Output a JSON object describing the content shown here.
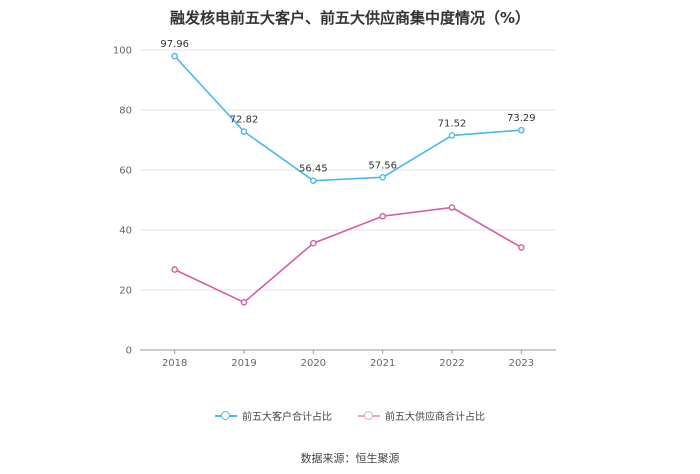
{
  "title": "融发核电前五大客户、前五大供应商集中度情况（%）",
  "source": "数据来源：恒生聚源",
  "colors": {
    "customers": "#4cb8e8",
    "suppliers": "#d45ea8",
    "grid": "#e6e6e6",
    "axis": "#999999"
  },
  "chart_data": {
    "type": "line",
    "title": "融发核电前五大客户、前五大供应商集中度情况（%）",
    "xlabel": "",
    "ylabel": "",
    "categories": [
      "2018",
      "2019",
      "2020",
      "2021",
      "2022",
      "2023"
    ],
    "ylim": [
      0,
      100
    ],
    "yticks": [
      0,
      20,
      40,
      60,
      80,
      100
    ],
    "grid": true,
    "legend": "bottom-center",
    "series": [
      {
        "name": "前五大客户合计占比",
        "values": [
          97.96,
          72.82,
          56.45,
          57.56,
          71.52,
          73.29
        ],
        "labels": [
          "97.96",
          "72.82",
          "56.45",
          "57.56",
          "71.52",
          "73.29"
        ]
      },
      {
        "name": "前五大供应商合计占比",
        "values": [
          26.8,
          15.9,
          35.6,
          44.6,
          47.5,
          34.2
        ]
      }
    ]
  }
}
